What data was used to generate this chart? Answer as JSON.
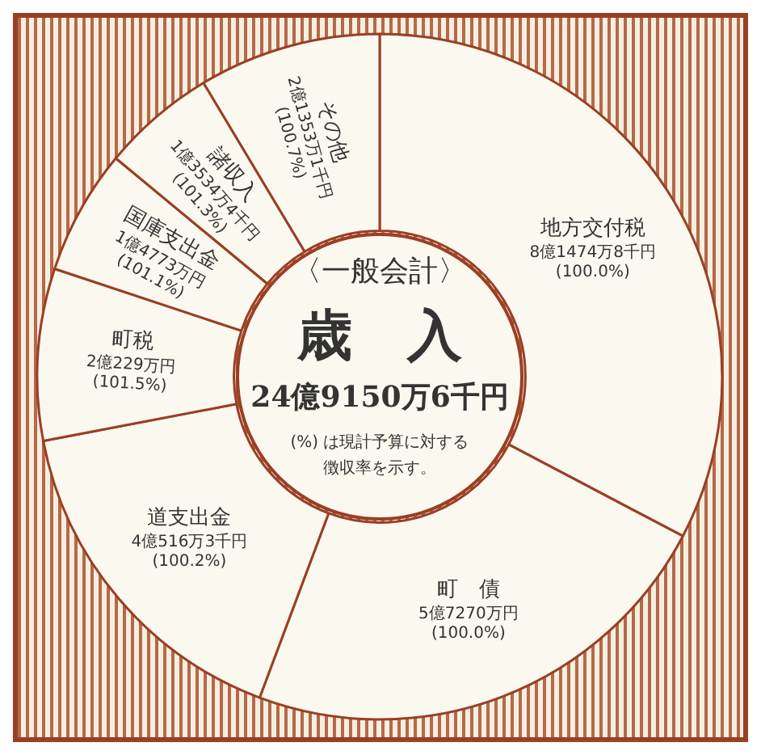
{
  "chart_data": {
    "type": "donut",
    "subtitle": "〈一般会計〉",
    "title": "歳　入",
    "annotations": [
      "24億9150万6千円",
      "(%) は現計予算に対する徴収率を示す。",
      "8億1474万8千円\n(100.0%)",
      "5億7270万円\n(100.0%)",
      "4億516万3千円\n(100.2%)",
      "2億229万円\n(101.5%)",
      "1億4773万円\n(101.1%)",
      "1億3534万4千円\n(101.3%)",
      "2億1353万1千円\n(100.7%)"
    ],
    "categories": [
      "地方交付税",
      "町　債",
      "道支出金",
      "町税",
      "国庫支出金",
      "諸収入",
      "その他"
    ],
    "values": [
      32.7,
      23.0,
      16.3,
      8.1,
      5.9,
      5.4,
      8.6
    ],
    "colors": [
      "#fbf8f0",
      "#fbf8f0",
      "#fbf8f0",
      "#fbf8f0",
      "#fbf8f0",
      "#fbf8f0",
      "#fbf8f0"
    ]
  }
}
